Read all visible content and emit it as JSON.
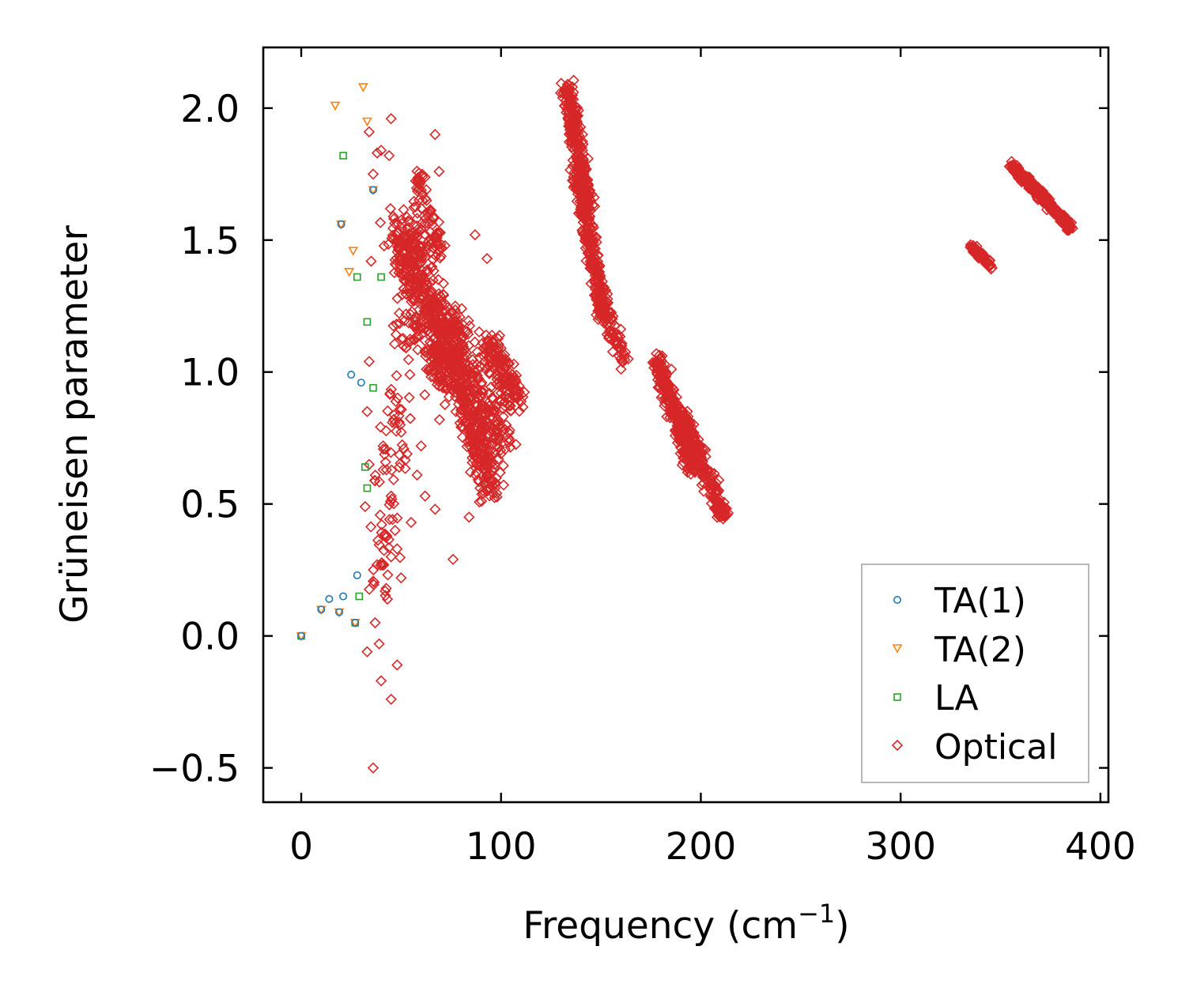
{
  "chart_data": {
    "type": "scatter",
    "title": "",
    "xlabel": "Frequency (cm",
    "xlabel_sup": "−1",
    "xlabel_end": ")",
    "ylabel": "Grüneisen parameter",
    "xlim": [
      -19,
      404
    ],
    "ylim": [
      -0.63,
      2.23
    ],
    "xticks": [
      0,
      100,
      200,
      300,
      400
    ],
    "xtick_labels": [
      "0",
      "100",
      "200",
      "300",
      "400"
    ],
    "yticks": [
      -0.5,
      0.0,
      0.5,
      1.0,
      1.5,
      2.0
    ],
    "ytick_labels": [
      "−0.5",
      "0.0",
      "0.5",
      "1.0",
      "1.5",
      "2.0"
    ],
    "grid": false,
    "legend_position": "bottom-right",
    "series": [
      {
        "name": "TA(1)",
        "marker": "circle",
        "color": "#1f77b4",
        "points": [
          [
            0,
            0.0
          ],
          [
            10,
            0.1
          ],
          [
            14,
            0.14
          ],
          [
            19,
            0.09
          ],
          [
            21,
            0.15
          ],
          [
            20,
            1.56
          ],
          [
            25,
            0.99
          ],
          [
            30,
            0.96
          ],
          [
            28,
            0.23
          ],
          [
            36,
            1.69
          ],
          [
            27,
            0.05
          ]
        ]
      },
      {
        "name": "TA(2)",
        "marker": "triangle-down",
        "color": "#ff7f0e",
        "points": [
          [
            0,
            0.0
          ],
          [
            10,
            0.1
          ],
          [
            17,
            2.01
          ],
          [
            19,
            0.09
          ],
          [
            20,
            1.56
          ],
          [
            24,
            1.38
          ],
          [
            26,
            1.46
          ],
          [
            31,
            2.08
          ],
          [
            33,
            1.95
          ],
          [
            36,
            1.69
          ],
          [
            27,
            0.05
          ]
        ]
      },
      {
        "name": "LA",
        "marker": "square",
        "color": "#2ca02c",
        "points": [
          [
            0,
            0.0
          ],
          [
            21,
            1.82
          ],
          [
            28,
            1.36
          ],
          [
            29,
            0.15
          ],
          [
            27,
            0.05
          ],
          [
            32,
            0.64
          ],
          [
            33,
            1.19
          ],
          [
            33,
            0.56
          ],
          [
            36,
            0.94
          ],
          [
            40,
            1.36
          ]
        ]
      },
      {
        "name": "Optical",
        "marker": "diamond",
        "color": "#d62728",
        "points": [
          [
            36,
            -0.5
          ],
          [
            45,
            -0.24
          ],
          [
            40,
            -0.17
          ],
          [
            33,
            -0.06
          ],
          [
            39,
            -0.03
          ],
          [
            48,
            -0.11
          ],
          [
            37,
            0.05
          ],
          [
            33,
            0.85
          ],
          [
            34,
            1.04
          ],
          [
            32,
            0.49
          ],
          [
            35,
            1.42
          ],
          [
            34,
            1.91
          ],
          [
            36,
            1.75
          ],
          [
            38,
            1.83
          ],
          [
            40,
            1.84
          ],
          [
            45,
            1.96
          ],
          [
            44,
            1.82
          ],
          [
            67,
            1.9
          ],
          [
            69,
            1.76
          ],
          [
            87,
            1.52
          ],
          [
            93,
            1.43
          ],
          [
            76,
            0.29
          ],
          [
            67,
            0.48
          ],
          [
            62,
            0.53
          ],
          [
            60,
            0.72
          ],
          [
            104,
            0.77
          ],
          [
            92,
            0.58
          ],
          [
            84,
            0.45
          ],
          [
            45,
            0.3
          ],
          [
            48,
            0.33
          ],
          [
            50,
            0.22
          ],
          [
            42,
            0.17
          ],
          [
            42,
            0.38
          ],
          [
            38,
            0.27
          ],
          [
            47,
            0.4
          ],
          [
            55,
            0.43
          ],
          [
            58,
            0.61
          ],
          [
            53,
            0.69
          ],
          [
            45,
            0.53
          ],
          [
            41,
            0.72
          ],
          [
            34,
            0.65
          ],
          [
            49,
            0.81
          ]
        ],
        "clusters": [
          {
            "x0": 40,
            "y0": 0.2,
            "x1": 57,
            "y1": 1.6,
            "n": 130,
            "spread": 10
          },
          {
            "x0": 50,
            "y0": 1.55,
            "x1": 77,
            "y1": 0.95,
            "n": 520,
            "spread": 13
          },
          {
            "x0": 57,
            "y0": 1.75,
            "x1": 70,
            "y1": 1.45,
            "n": 60,
            "spread": 5
          },
          {
            "x0": 72,
            "y0": 1.2,
            "x1": 100,
            "y1": 0.7,
            "n": 280,
            "spread": 11
          },
          {
            "x0": 80,
            "y0": 0.9,
            "x1": 95,
            "y1": 0.55,
            "n": 180,
            "spread": 8
          },
          {
            "x0": 94,
            "y0": 1.1,
            "x1": 108,
            "y1": 0.88,
            "n": 140,
            "spread": 7
          },
          {
            "x0": 133,
            "y0": 2.08,
            "x1": 144,
            "y1": 1.6,
            "n": 300,
            "spread": 4
          },
          {
            "x0": 138,
            "y0": 1.75,
            "x1": 152,
            "y1": 1.2,
            "n": 260,
            "spread": 4
          },
          {
            "x0": 148,
            "y0": 1.3,
            "x1": 162,
            "y1": 1.03,
            "n": 80,
            "spread": 4
          },
          {
            "x0": 178,
            "y0": 1.05,
            "x1": 196,
            "y1": 0.62,
            "n": 280,
            "spread": 4
          },
          {
            "x0": 190,
            "y0": 0.85,
            "x1": 212,
            "y1": 0.44,
            "n": 240,
            "spread": 4
          },
          {
            "x0": 335,
            "y0": 1.48,
            "x1": 345,
            "y1": 1.4,
            "n": 70,
            "spread": 2
          },
          {
            "x0": 356,
            "y0": 1.78,
            "x1": 385,
            "y1": 1.55,
            "n": 320,
            "spread": 2
          }
        ]
      }
    ]
  }
}
